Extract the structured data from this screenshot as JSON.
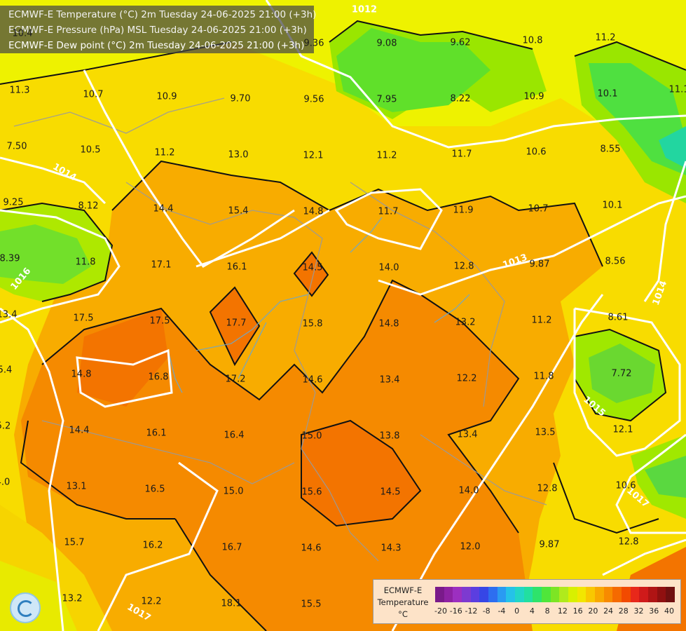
{
  "title": {
    "line1": "ECMWF-E Temperature (°C) 2m Tuesday 24-06-2025 21:00 (+3h)",
    "line2": "ECMWF-E Pressure (hPa) MSL Tuesday 24-06-2025 21:00 (+3h)",
    "line3": "ECMWF-E Dew point (°C) 2m Tuesday 24-06-2025 21:00 (+3h)"
  },
  "isobars": [
    "1012",
    "1013",
    "1014",
    "1015",
    "1016",
    "1017"
  ],
  "value_labels": [
    "10.4",
    "11.3",
    "10.7",
    "10.9",
    "9.70",
    "9.36",
    "9.08",
    "9.62",
    "10.8",
    "11.2",
    "11.1",
    "9.56",
    "7.95",
    "8.22",
    "10.9",
    "10.1",
    "7.50",
    "10.5",
    "11.2",
    "13.0",
    "12.1",
    "11.2",
    "11.7",
    "10.6",
    "8.55",
    "9.25",
    "8.12",
    "14.4",
    "15.4",
    "14.8",
    "11.7",
    "11.9",
    "10.7",
    "10.1",
    "8.39",
    "11.8",
    "17.1",
    "16.1",
    "14.5",
    "14.0",
    "12.8",
    "9.87",
    "8.56",
    "13.4",
    "17.5",
    "17.5",
    "17.7",
    "15.8",
    "14.8",
    "13.2",
    "11.2",
    "8.61",
    "5.4",
    "14.8",
    "16.8",
    "17.2",
    "14.6",
    "13.4",
    "12.2",
    "11.8",
    "7.72",
    "5.2",
    "14.4",
    "16.1",
    "16.4",
    "15.0",
    "13.8",
    "13.4",
    "13.5",
    "12.1",
    "4.0",
    "13.1",
    "16.5",
    "15.0",
    "15.6",
    "14.5",
    "14.0",
    "12.8",
    "10.6",
    "15.7",
    "16.2",
    "16.7",
    "14.6",
    "14.3",
    "12.0",
    "9.87",
    "12.8",
    "13.2",
    "12.2",
    "18.1",
    "15.5"
  ],
  "legend": {
    "title_lines": [
      "ECMWF-E",
      "Temperature",
      "°C"
    ],
    "ticks": [
      "-20",
      "-16",
      "-12",
      "-8",
      "-4",
      "0",
      "4",
      "8",
      "12",
      "16",
      "20",
      "24",
      "28",
      "32",
      "36",
      "40"
    ],
    "colors": [
      "#7a1a8a",
      "#8e22a3",
      "#9c2fc0",
      "#7d3ad0",
      "#5b3ee0",
      "#3646e6",
      "#2d6ef0",
      "#2a9bf2",
      "#25c2e8",
      "#22d6c6",
      "#22dfa0",
      "#2ee36b",
      "#4fe63a",
      "#7de524",
      "#b0ea1c",
      "#d8f000",
      "#f2e600",
      "#f9c800",
      "#f9a800",
      "#f88a00",
      "#f56a00",
      "#f24a00",
      "#e8281a",
      "#d01a1a",
      "#b01414",
      "#901010",
      "#701010"
    ]
  },
  "logo_name": "ecmwf-swirl-logo"
}
